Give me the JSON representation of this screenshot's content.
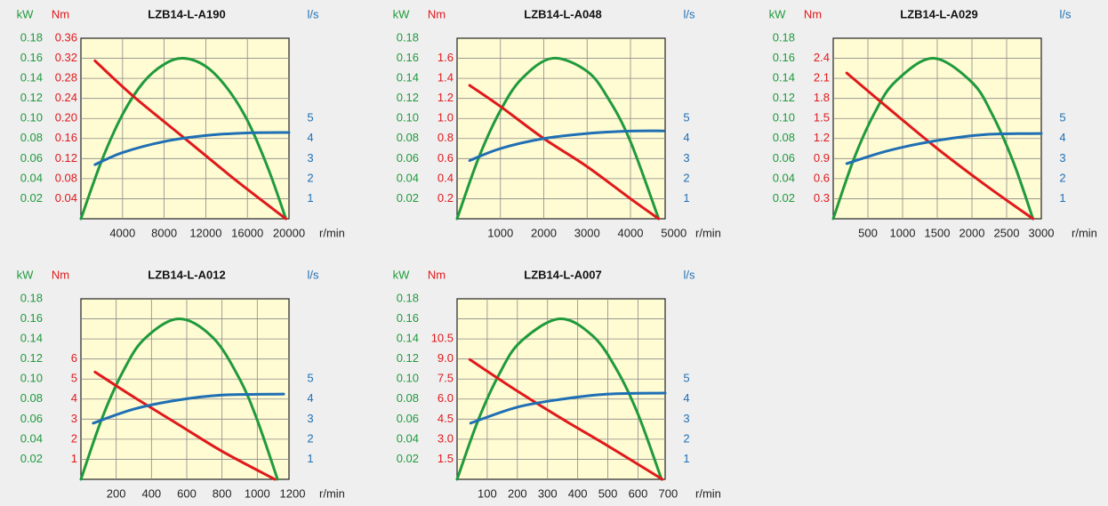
{
  "chart_data": [
    {
      "type": "line",
      "title": "LZB14-L-A190",
      "x_label": "r/min",
      "y_label": "kW",
      "y3_label": "Nm",
      "y2_label": "l/s",
      "xlim": [
        0,
        20000
      ],
      "xticks": [
        4000,
        8000,
        12000,
        16000,
        20000
      ],
      "ylim": [
        0,
        0.18
      ],
      "yticks": [
        0.02,
        0.04,
        0.06,
        0.08,
        {
          "value": 0.1,
          "label": "0.10"
        },
        0.12,
        0.14,
        0.16,
        0.18
      ],
      "y3lim": [
        0,
        0.36
      ],
      "y3ticks": [
        0.04,
        0.08,
        0.12,
        0.16,
        {
          "value": 0.2,
          "label": "0.20"
        },
        0.24,
        0.28,
        0.32,
        0.36
      ],
      "y2lim": [
        0,
        9
      ],
      "y2ticks": [
        1,
        2,
        3,
        4,
        5
      ],
      "grid": true,
      "series": [
        {
          "color": "#1f9a3c",
          "axis": "y",
          "x": [
            0,
            2000,
            4000,
            6000,
            8000,
            9850,
            12000,
            14000,
            16000,
            18000,
            19700
          ],
          "values": [
            0,
            0.058,
            0.104,
            0.136,
            0.154,
            0.16,
            0.152,
            0.131,
            0.098,
            0.05,
            0
          ]
        },
        {
          "color": "#e0191b",
          "axis": "y3",
          "x": [
            1350,
            5000,
            10000,
            15000,
            19700
          ],
          "values": [
            0.315,
            0.245,
            0.16,
            0.075,
            0
          ]
        },
        {
          "color": "#1f6fb4",
          "axis": "y2",
          "x": [
            1350,
            4000,
            8000,
            12000,
            16000,
            20000
          ],
          "values": [
            2.7,
            3.3,
            3.85,
            4.15,
            4.28,
            4.3
          ]
        }
      ]
    },
    {
      "type": "line",
      "title": "LZB14-L-A048",
      "x_label": "r/min",
      "y_label": "kW",
      "y3_label": "Nm",
      "y2_label": "l/s",
      "xlim": [
        0,
        4800
      ],
      "xticks": [
        1000,
        2000,
        3000,
        4000,
        5000
      ],
      "ylim": [
        0,
        0.18
      ],
      "yticks": [
        0.02,
        0.04,
        0.06,
        0.08,
        {
          "value": 0.1,
          "label": "0.10"
        },
        0.12,
        0.14,
        0.16,
        0.18
      ],
      "y3lim": [
        0,
        1.8
      ],
      "y3ticks": [
        0.2,
        0.4,
        0.6,
        0.8,
        {
          "value": 1,
          "label": "1.0"
        },
        1.2,
        1.4,
        1.6
      ],
      "y2lim": [
        0,
        9
      ],
      "y2ticks": [
        1,
        2,
        3,
        4,
        5
      ],
      "grid": true,
      "series": [
        {
          "color": "#1f9a3c",
          "axis": "y",
          "x": [
            0,
            500,
            1000,
            1500,
            2200,
            3000,
            3500,
            4000,
            4650
          ],
          "values": [
            0,
            0.061,
            0.108,
            0.14,
            0.16,
            0.147,
            0.119,
            0.077,
            0
          ]
        },
        {
          "color": "#e0191b",
          "axis": "y3",
          "x": [
            290,
            1000,
            2000,
            3000,
            4000,
            4650
          ],
          "values": [
            1.33,
            1.12,
            0.8,
            0.52,
            0.2,
            0
          ]
        },
        {
          "color": "#1f6fb4",
          "axis": "y2",
          "x": [
            290,
            1000,
            2000,
            3000,
            4000,
            4760
          ],
          "values": [
            2.9,
            3.5,
            4.0,
            4.25,
            4.37,
            4.38
          ]
        }
      ]
    },
    {
      "type": "line",
      "title": "LZB14-L-A029",
      "x_label": "r/min",
      "y_label": "kW",
      "y3_label": "Nm",
      "y2_label": "l/s",
      "xlim": [
        0,
        3000
      ],
      "xticks": [
        500,
        1000,
        1500,
        2000,
        2500,
        3000
      ],
      "ylim": [
        0,
        0.18
      ],
      "yticks": [
        0.02,
        0.04,
        0.06,
        0.08,
        {
          "value": 0.1,
          "label": "0.10"
        },
        0.12,
        0.14,
        0.16,
        0.18
      ],
      "y3lim": [
        0,
        2.7
      ],
      "y3ticks": [
        0.3,
        0.6,
        0.9,
        1.2,
        1.5,
        1.8,
        2.1,
        2.4
      ],
      "y2lim": [
        0,
        9
      ],
      "y2ticks": [
        1,
        2,
        3,
        4,
        5
      ],
      "grid": true,
      "series": [
        {
          "color": "#1f9a3c",
          "axis": "y",
          "x": [
            0,
            300,
            600,
            900,
            1440,
            2000,
            2300,
            2600,
            2880
          ],
          "values": [
            0,
            0.06,
            0.106,
            0.137,
            0.16,
            0.136,
            0.103,
            0.056,
            0
          ]
        },
        {
          "color": "#e0191b",
          "axis": "y3",
          "x": [
            195,
            800,
            1500,
            2200,
            2880
          ],
          "values": [
            2.18,
            1.65,
            1.05,
            0.5,
            0
          ]
        },
        {
          "color": "#1f6fb4",
          "axis": "y2",
          "x": [
            195,
            800,
            1500,
            2200,
            3000
          ],
          "values": [
            2.75,
            3.4,
            3.9,
            4.2,
            4.25
          ]
        }
      ]
    },
    {
      "type": "line",
      "title": "LZB14-L-A012",
      "x_label": "r/min",
      "y_label": "kW",
      "y3_label": "Nm",
      "y2_label": "l/s",
      "xlim": [
        0,
        1180
      ],
      "xticks": [
        200,
        400,
        600,
        800,
        1000,
        1200
      ],
      "ylim": [
        0,
        0.18
      ],
      "yticks": [
        0.02,
        0.04,
        0.06,
        0.08,
        {
          "value": 0.1,
          "label": "0.10"
        },
        0.12,
        0.14,
        0.16,
        0.18
      ],
      "y3lim": [
        0,
        9
      ],
      "y3ticks": [
        1,
        2,
        3,
        4,
        5,
        6
      ],
      "y2lim": [
        0,
        9
      ],
      "y2ticks": [
        1,
        2,
        3,
        4,
        5
      ],
      "grid": true,
      "series": [
        {
          "color": "#1f9a3c",
          "axis": "y",
          "x": [
            0,
            120,
            240,
            360,
            555,
            750,
            900,
            1000,
            1115
          ],
          "values": [
            0,
            0.061,
            0.108,
            0.14,
            0.16,
            0.141,
            0.1,
            0.059,
            0
          ]
        },
        {
          "color": "#e0191b",
          "axis": "y3",
          "x": [
            80,
            300,
            550,
            800,
            1100
          ],
          "values": [
            5.35,
            4.1,
            2.75,
            1.4,
            0
          ]
        },
        {
          "color": "#1f6fb4",
          "axis": "y2",
          "x": [
            70,
            300,
            550,
            800,
            1150
          ],
          "values": [
            2.8,
            3.5,
            3.95,
            4.2,
            4.25
          ]
        }
      ]
    },
    {
      "type": "line",
      "title": "LZB14-L-A007",
      "x_label": "r/min",
      "y_label": "kW",
      "y3_label": "Nm",
      "y2_label": "l/s",
      "xlim": [
        0,
        690
      ],
      "xticks": [
        100,
        200,
        300,
        400,
        500,
        600,
        700
      ],
      "ylim": [
        0,
        0.18
      ],
      "yticks": [
        0.02,
        0.04,
        0.06,
        0.08,
        {
          "value": 0.1,
          "label": "0.10"
        },
        0.12,
        0.14,
        0.16,
        0.18
      ],
      "y3lim": [
        0,
        13.5
      ],
      "y3ticks": [
        1.5,
        {
          "value": 3,
          "label": "3.0"
        },
        4.5,
        {
          "value": 6,
          "label": "6.0"
        },
        7.5,
        {
          "value": 9,
          "label": "9.0"
        },
        10.5
      ],
      "y2lim": [
        0,
        9
      ],
      "y2ticks": [
        1,
        2,
        3,
        4,
        5
      ],
      "grid": true,
      "series": [
        {
          "color": "#1f9a3c",
          "axis": "y",
          "x": [
            0,
            70,
            140,
            210,
            339,
            450,
            530,
            600,
            678
          ],
          "values": [
            0,
            0.059,
            0.105,
            0.137,
            0.16,
            0.143,
            0.109,
            0.065,
            0
          ]
        },
        {
          "color": "#e0191b",
          "axis": "y3",
          "x": [
            42,
            200,
            350,
            500,
            681
          ],
          "values": [
            8.96,
            6.6,
            4.5,
            2.5,
            0
          ]
        },
        {
          "color": "#1f6fb4",
          "axis": "y2",
          "x": [
            45,
            200,
            350,
            500,
            690
          ],
          "values": [
            2.8,
            3.6,
            4.0,
            4.25,
            4.3
          ]
        }
      ]
    }
  ]
}
